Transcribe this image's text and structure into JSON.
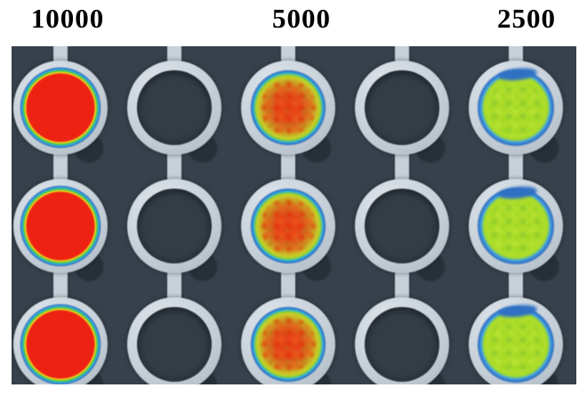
{
  "figure": {
    "image_description": "False-color image of a microtiter plate: three rows of round wells; alternating columns are filled (red, orange-red, yellow-green) or empty dark wells, with light well rims on a dark plate",
    "column_labels": [
      "10000",
      "5000",
      "2500"
    ],
    "plate": {
      "rows": 3,
      "columns": [
        {
          "label": "10000",
          "wells": "filled-red"
        },
        {
          "label": "",
          "wells": "empty"
        },
        {
          "label": "5000",
          "wells": "filled-orange-red"
        },
        {
          "label": "",
          "wells": "empty"
        },
        {
          "label": "2500",
          "wells": "filled-yellow-green"
        }
      ]
    },
    "colors": {
      "label_text": "#000000",
      "plate_bg": "#37414b",
      "bump": "#272f37",
      "rim": "#c7d0d8",
      "empty_well": "#333d46",
      "high_fill": "#ee2213",
      "mid_center": "#e64518",
      "mid_edge": "#c6cf29",
      "low_fill": "#aedd2b",
      "ring_yellow": "#f0e41f",
      "ring_green": "#4ec03e",
      "ring_cyan": "#2fb5da",
      "ring_blue": "#2f70c3"
    }
  }
}
